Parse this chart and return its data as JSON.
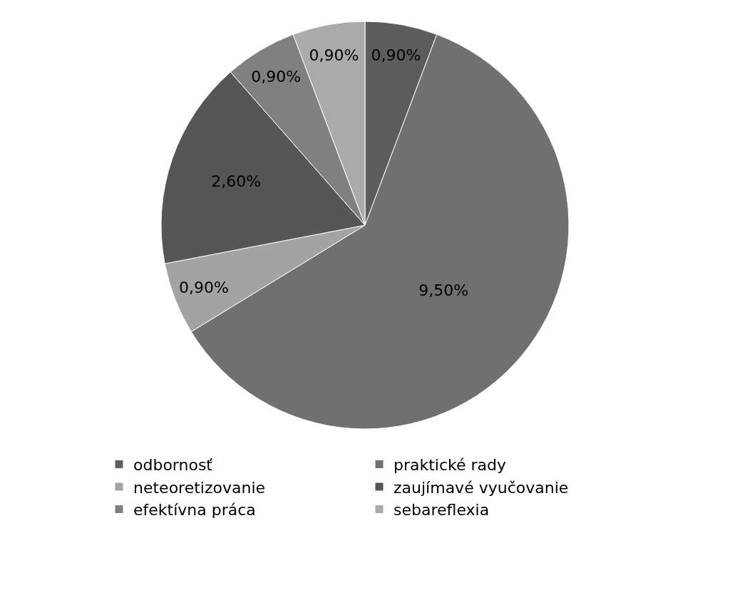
{
  "chart_data": {
    "type": "pie",
    "categories": [
      "odbornosť",
      "praktické rady",
      "neteoretizovanie",
      "zaujímavé vyučovanie",
      "efektívna práca",
      "sebareflexia"
    ],
    "values": [
      0.9,
      9.5,
      0.9,
      2.6,
      0.9,
      0.9
    ],
    "value_labels": [
      "0,90%",
      "9,50%",
      "0,90%",
      "2,60%",
      "0,90%",
      "0,90%"
    ],
    "colors": [
      "#5c5c5c",
      "#707070",
      "#a3a3a3",
      "#565656",
      "#808080",
      "#aaaaaa"
    ],
    "legend": "bottom"
  }
}
